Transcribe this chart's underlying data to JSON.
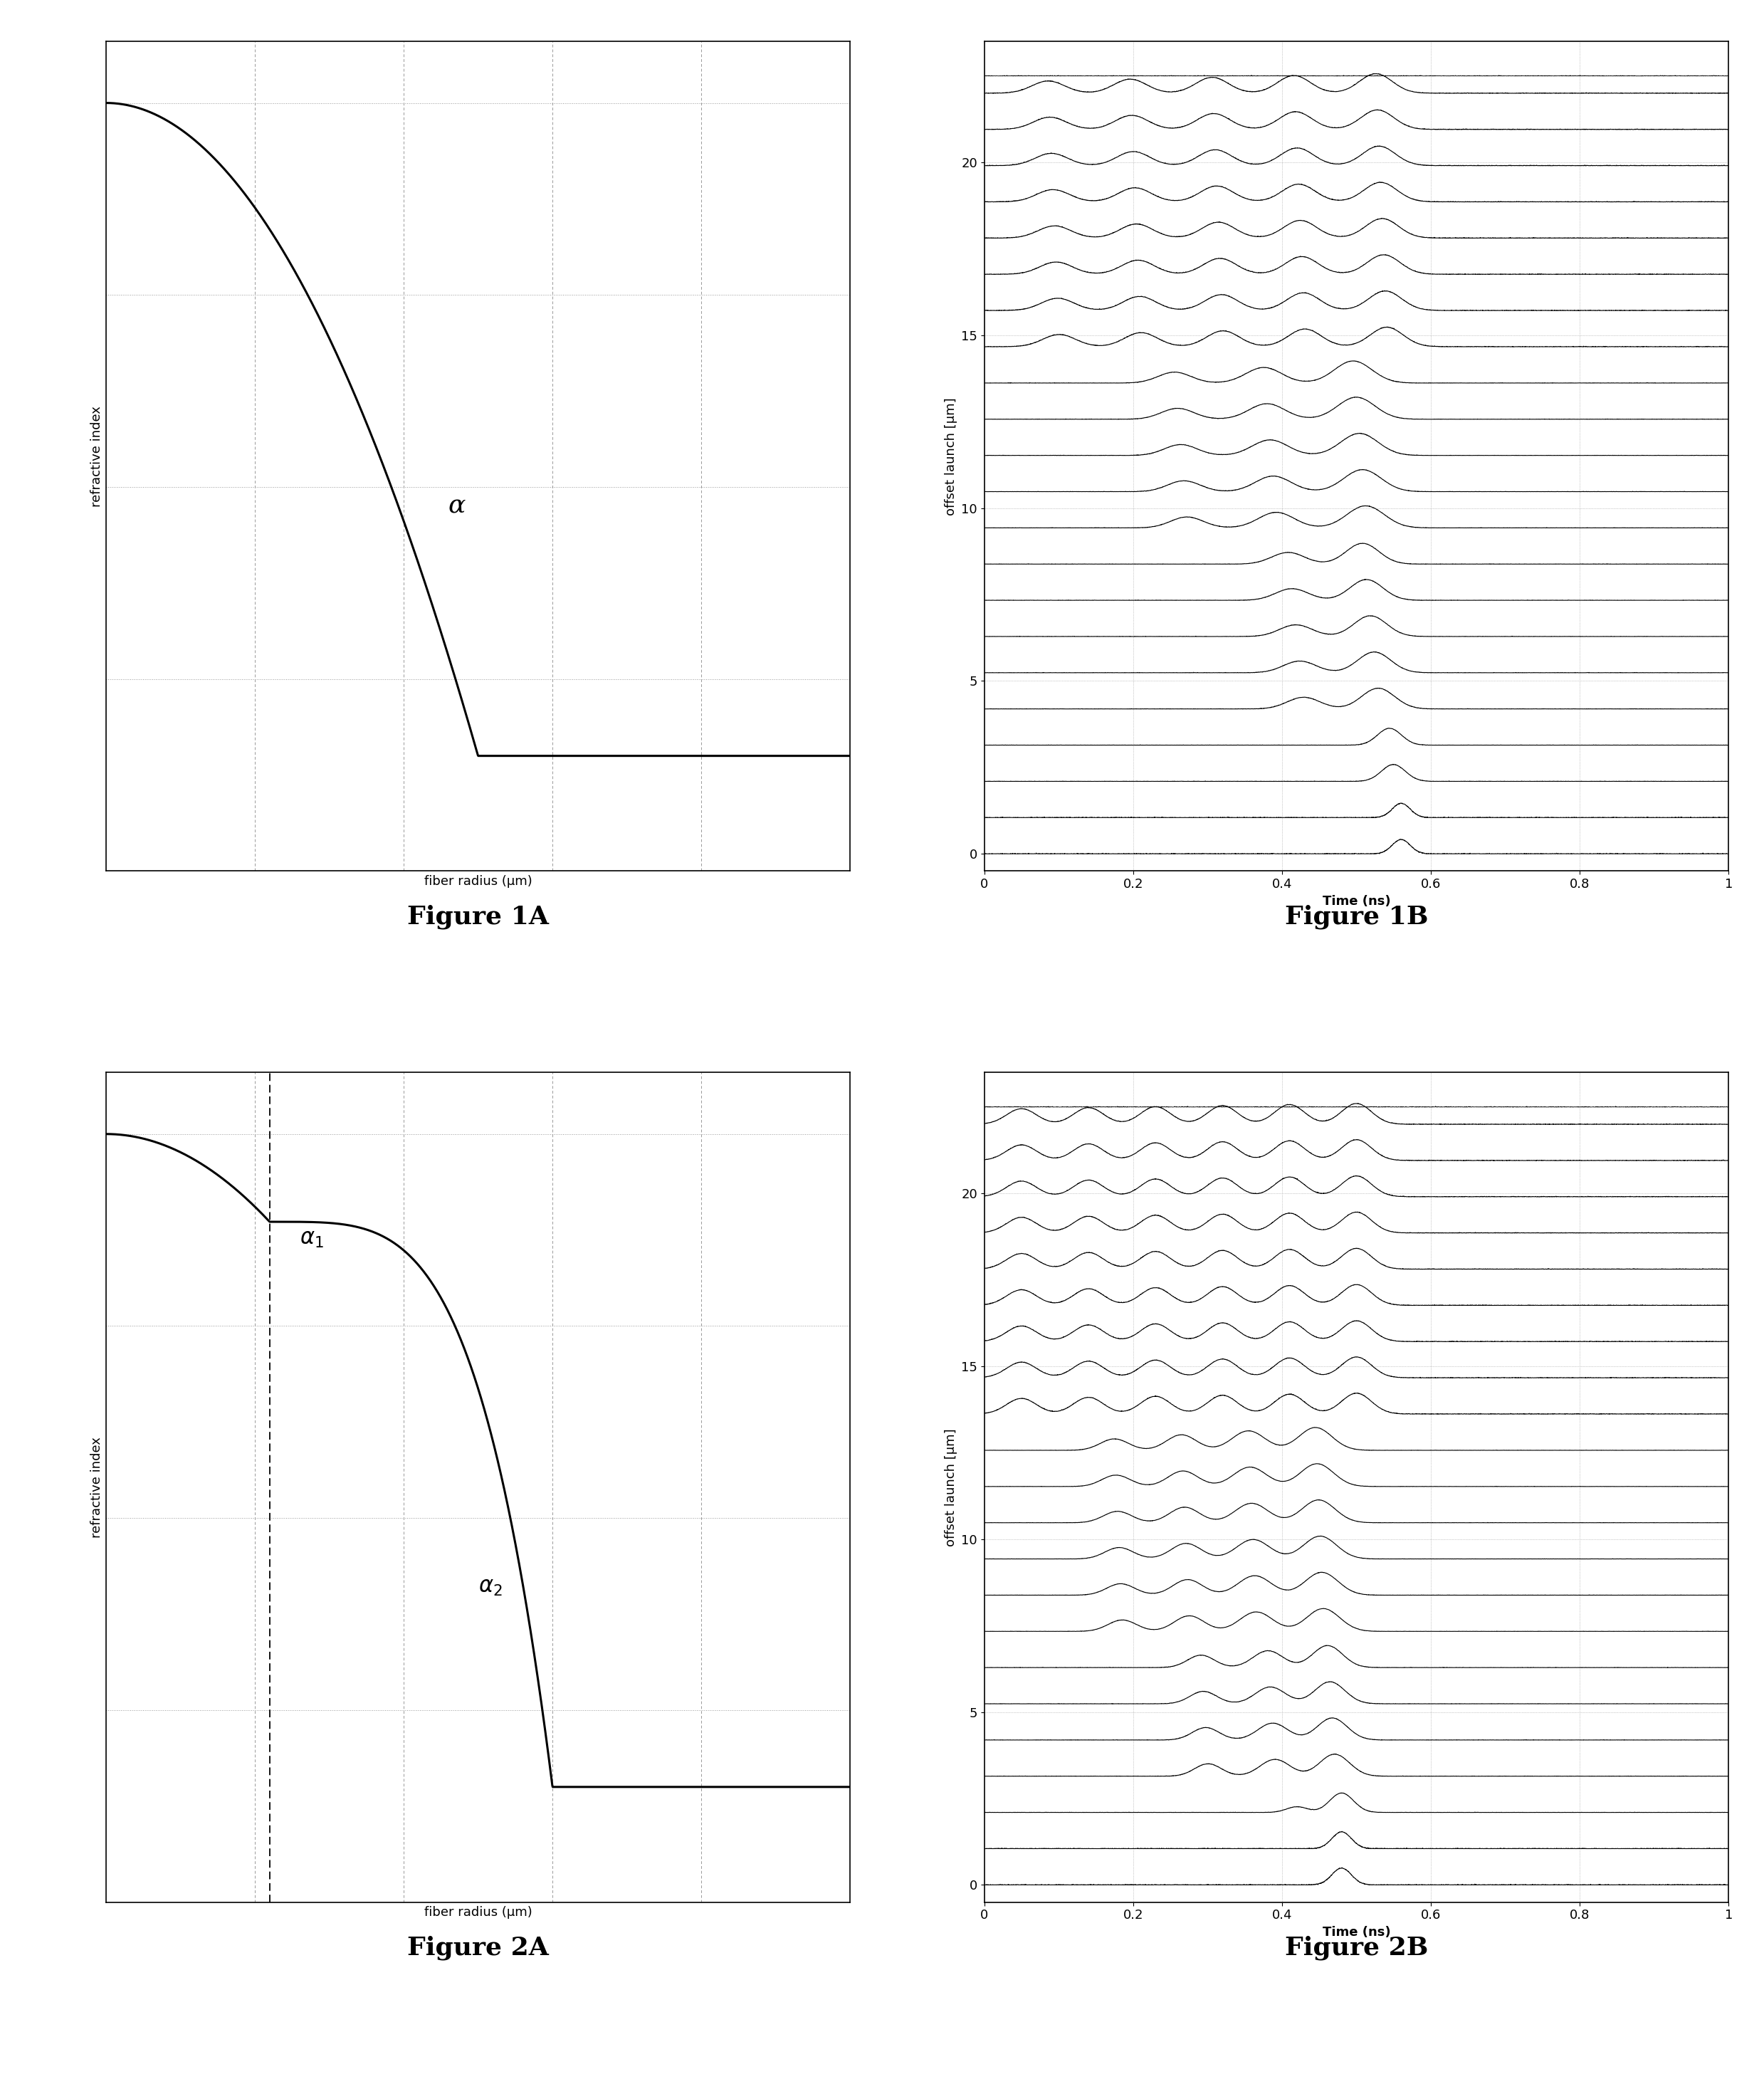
{
  "fig_width": 24.78,
  "fig_height": 29.13,
  "bg_color": "#ffffff",
  "grid_color": "#999999",
  "curve_color": "#000000",
  "fig1a_xlabel": "fiber radius (μm)",
  "fig1a_ylabel": "refractive index",
  "fig1a_alpha_label": "α",
  "fig1b_xlabel": "Time (ns)",
  "fig1b_ylabel": "offset launch [μm]",
  "fig2a_xlabel": "fiber radius (μm)",
  "fig2a_ylabel": "refractive index",
  "fig2a_alpha1_label": "α",
  "fig2a_alpha1_sub": "1",
  "fig2a_alpha2_label": "α",
  "fig2a_alpha2_sub": "2",
  "fig2b_xlabel": "Time (ns)",
  "fig2b_ylabel": "offset launch [μm]",
  "caption1a": "Figure 1A",
  "caption1b": "Figure 1B",
  "caption2a": "Figure 2A",
  "caption2b": "Figure 2B",
  "caption_fontsize": 26,
  "label_fontsize": 13,
  "tick_fontsize": 13
}
